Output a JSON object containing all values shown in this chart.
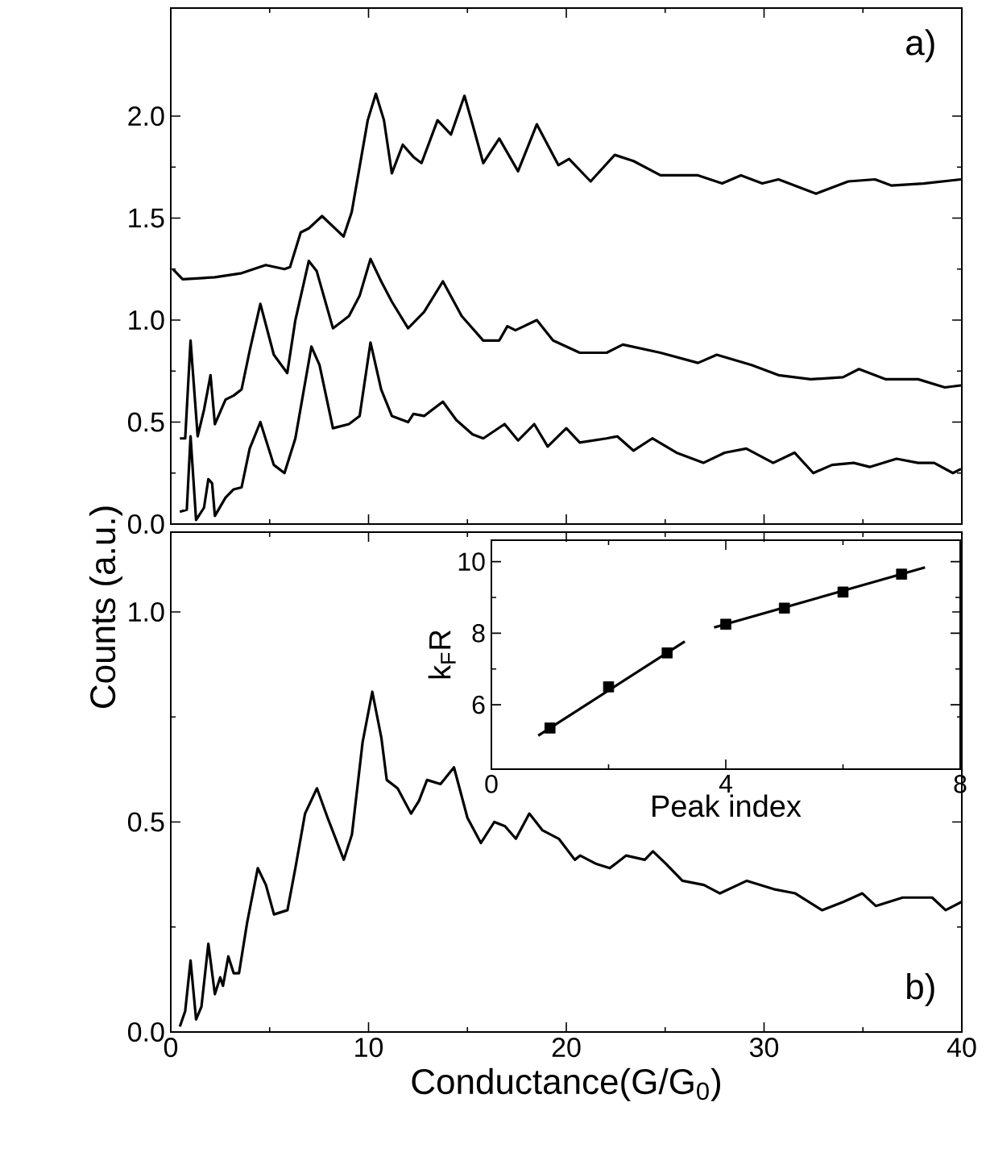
{
  "chart_data": [
    {
      "type": "line",
      "xlim": [
        0,
        40
      ],
      "ylim": [
        0,
        2.53
      ],
      "xticks": [
        0,
        10,
        20,
        30,
        40
      ],
      "yticks": [
        {
          "value": 0,
          "label": "0.0"
        },
        {
          "value": 0.5,
          "label": "0.5"
        },
        {
          "value": 1,
          "label": "1.0"
        },
        {
          "value": 1.5,
          "label": "1.5"
        },
        {
          "value": 2,
          "label": "2.0"
        }
      ],
      "tick_labels": "y",
      "annotations": [
        "a)"
      ],
      "series": [
        {
          "color": "#000000",
          "x": [
            0.11,
            0.6,
            2.23,
            3.58,
            4.8,
            5.75,
            6.03,
            6.57,
            6.98,
            7.65,
            8.74,
            9.15,
            9.96,
            10.37,
            10.78,
            11.18,
            11.73,
            12.27,
            12.68,
            13.49,
            14.17,
            14.85,
            15.26,
            15.8,
            16.61,
            17.56,
            18.51,
            19.6,
            20.14,
            21.23,
            22.45,
            23.4,
            24.76,
            26.66,
            27.88,
            28.83,
            29.91,
            30.73,
            32.63,
            34.26,
            35.61,
            36.43,
            38.06,
            39.96
          ],
          "values": [
            1.25,
            1.2,
            1.21,
            1.23,
            1.27,
            1.25,
            1.26,
            1.43,
            1.45,
            1.51,
            1.41,
            1.53,
            1.98,
            2.11,
            1.98,
            1.72,
            1.86,
            1.8,
            1.77,
            1.98,
            1.91,
            2.1,
            1.96,
            1.77,
            1.89,
            1.73,
            1.96,
            1.76,
            1.79,
            1.68,
            1.81,
            1.78,
            1.71,
            1.71,
            1.67,
            1.71,
            1.67,
            1.69,
            1.62,
            1.68,
            1.69,
            1.66,
            1.67,
            1.69
          ]
        },
        {
          "color": "#000000",
          "x": [
            0.46,
            0.73,
            1.0,
            1.36,
            1.68,
            2.01,
            2.23,
            2.77,
            3.18,
            3.58,
            3.99,
            4.53,
            5.21,
            5.89,
            6.3,
            6.98,
            7.38,
            8.2,
            9.01,
            9.55,
            10.1,
            10.64,
            11.18,
            12.0,
            12.81,
            13.76,
            14.71,
            15.8,
            16.61,
            17.02,
            17.43,
            18.51,
            19.33,
            20.68,
            22.04,
            22.86,
            24.76,
            26.66,
            27.61,
            29.37,
            30.73,
            32.36,
            33.99,
            34.8,
            36.16,
            37.79,
            39.14,
            39.96
          ],
          "values": [
            0.42,
            0.42,
            0.9,
            0.43,
            0.56,
            0.73,
            0.49,
            0.61,
            0.63,
            0.66,
            0.85,
            1.08,
            0.83,
            0.74,
            1.0,
            1.29,
            1.24,
            0.96,
            1.02,
            1.12,
            1.3,
            1.19,
            1.09,
            0.96,
            1.04,
            1.19,
            1.02,
            0.9,
            0.9,
            0.97,
            0.95,
            1.0,
            0.9,
            0.84,
            0.84,
            0.88,
            0.84,
            0.79,
            0.83,
            0.78,
            0.73,
            0.71,
            0.72,
            0.76,
            0.71,
            0.71,
            0.67,
            0.68
          ]
        },
        {
          "color": "#000000",
          "x": [
            0.46,
            0.81,
            1.0,
            1.28,
            1.68,
            1.9,
            2.09,
            2.23,
            2.77,
            3.18,
            3.58,
            3.99,
            4.53,
            5.21,
            5.75,
            6.3,
            7.11,
            7.52,
            8.2,
            9.01,
            9.55,
            10.1,
            10.64,
            11.18,
            12.0,
            12.27,
            12.81,
            13.76,
            14.44,
            15.26,
            15.8,
            16.88,
            17.56,
            18.38,
            19.06,
            20.0,
            20.68,
            22.04,
            22.58,
            23.4,
            24.35,
            25.57,
            26.93,
            28.01,
            29.1,
            30.46,
            31.54,
            32.49,
            33.44,
            34.53,
            35.34,
            36.7,
            37.79,
            38.6,
            39.55,
            39.96
          ],
          "values": [
            0.06,
            0.07,
            0.43,
            0.02,
            0.08,
            0.22,
            0.2,
            0.04,
            0.13,
            0.17,
            0.18,
            0.37,
            0.5,
            0.29,
            0.25,
            0.42,
            0.87,
            0.78,
            0.47,
            0.49,
            0.53,
            0.89,
            0.66,
            0.53,
            0.5,
            0.54,
            0.53,
            0.6,
            0.51,
            0.44,
            0.42,
            0.49,
            0.41,
            0.49,
            0.38,
            0.47,
            0.4,
            0.42,
            0.43,
            0.36,
            0.42,
            0.35,
            0.3,
            0.35,
            0.37,
            0.3,
            0.35,
            0.25,
            0.29,
            0.3,
            0.28,
            0.32,
            0.3,
            0.3,
            0.25,
            0.27
          ]
        }
      ]
    },
    {
      "type": "line",
      "xlabel": "Conductance(G/G$_{0}$)",
      "ylabel": "Counts (a.u.)",
      "xlim": [
        0,
        40
      ],
      "ylim": [
        0,
        1.19
      ],
      "xticks": [
        0,
        10,
        20,
        30,
        40
      ],
      "yticks": [
        {
          "value": 0,
          "label": "0.0"
        },
        {
          "value": 0.5,
          "label": "0.5"
        },
        {
          "value": 1,
          "label": "1.0"
        }
      ],
      "annotations": [
        "b)"
      ],
      "series": [
        {
          "color": "#000000",
          "x": [
            0.46,
            0.73,
            1.0,
            1.28,
            1.55,
            1.9,
            2.23,
            2.5,
            2.64,
            2.91,
            3.18,
            3.45,
            3.86,
            4.4,
            4.81,
            5.22,
            5.9,
            6.3,
            6.79,
            7.39,
            7.93,
            8.75,
            9.16,
            9.7,
            10.19,
            10.65,
            10.92,
            11.47,
            12.15,
            12.55,
            12.96,
            13.64,
            14.32,
            15.0,
            15.68,
            16.36,
            16.9,
            17.45,
            18.13,
            18.8,
            19.62,
            20.43,
            20.7,
            21.52,
            22.2,
            23.02,
            23.97,
            24.38,
            25.05,
            25.87,
            26.96,
            27.77,
            29.13,
            30.49,
            31.58,
            32.93,
            34.02,
            34.97,
            35.65,
            37.01,
            38.5,
            39.18,
            40.0
          ],
          "values": [
            0.013,
            0.05,
            0.17,
            0.03,
            0.06,
            0.21,
            0.09,
            0.13,
            0.11,
            0.18,
            0.14,
            0.14,
            0.26,
            0.39,
            0.35,
            0.28,
            0.29,
            0.39,
            0.52,
            0.58,
            0.51,
            0.41,
            0.47,
            0.69,
            0.81,
            0.7,
            0.6,
            0.58,
            0.52,
            0.55,
            0.6,
            0.59,
            0.63,
            0.51,
            0.45,
            0.5,
            0.49,
            0.46,
            0.52,
            0.48,
            0.46,
            0.41,
            0.42,
            0.4,
            0.39,
            0.42,
            0.41,
            0.43,
            0.4,
            0.36,
            0.35,
            0.33,
            0.36,
            0.34,
            0.33,
            0.29,
            0.31,
            0.33,
            0.3,
            0.32,
            0.32,
            0.29,
            0.31
          ]
        }
      ]
    },
    {
      "type": "scatter",
      "xlabel": "Peak index",
      "ylabel": "k$_{F}$R",
      "xlim": [
        0,
        8
      ],
      "ylim": [
        4.2,
        10.6
      ],
      "xticks": [
        0,
        4,
        8
      ],
      "yticks": [
        6,
        8,
        10
      ],
      "series": [
        {
          "color": "#000000",
          "marker": "square",
          "x": [
            1,
            2,
            3,
            4,
            5,
            6,
            7
          ],
          "values": [
            5.35,
            6.5,
            7.45,
            8.25,
            8.7,
            9.15,
            9.65
          ]
        },
        {
          "type": "line",
          "color": "#000000",
          "x": [
            0.8,
            3.3
          ],
          "values": [
            5.14,
            7.77
          ]
        },
        {
          "type": "line",
          "color": "#000000",
          "x": [
            3.8,
            7.4
          ],
          "values": [
            8.16,
            9.84
          ]
        }
      ]
    }
  ]
}
